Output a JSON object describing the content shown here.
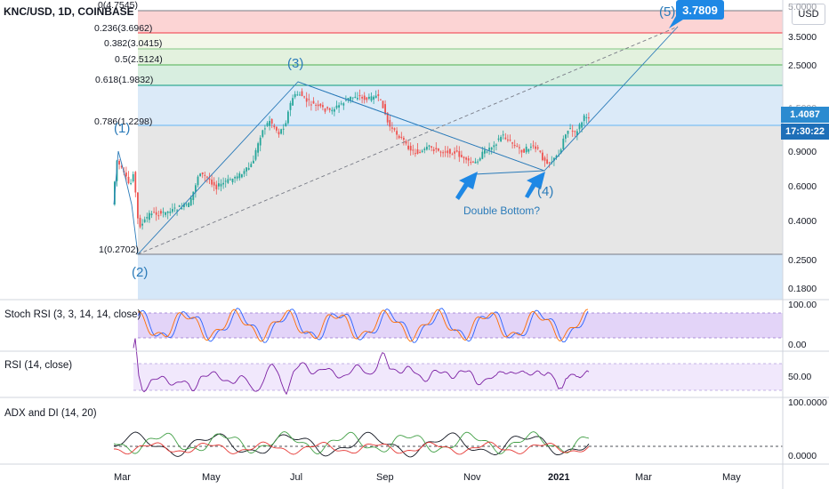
{
  "header": {
    "symbol_title": "KNC/USD, 1D, COINBASE",
    "currency_button": "USD"
  },
  "price_axis": {
    "ticks": [
      "5.0000",
      "3.5000",
      "2.5000",
      "1.5000",
      "0.9000",
      "0.6000",
      "0.4000",
      "0.2500",
      "0.1800"
    ],
    "last_price": "1.4087",
    "countdown": "17:30:22"
  },
  "fib_levels": [
    {
      "label": "0(4.7545)",
      "color": "#787b86"
    },
    {
      "label": "0.236(3.6962)",
      "color": "#f23645"
    },
    {
      "label": "0.382(3.0415)",
      "color": "#81c784"
    },
    {
      "label": "0.5(2.5124)",
      "color": "#4caf50"
    },
    {
      "label": "0.618(1.9832)",
      "color": "#089981"
    },
    {
      "label": "0.786(1.2298)",
      "color": "#64b5f6"
    },
    {
      "label": "1(0.2702)",
      "color": "#787b86"
    }
  ],
  "wave_labels": [
    "(1)",
    "(2)",
    "(3)",
    "(4)",
    "(5)"
  ],
  "annotations": {
    "double_bottom": "Double Bottom?",
    "target_value": "3.7809"
  },
  "indicators": {
    "stoch_rsi": {
      "label": "Stoch RSI (3, 3, 14, 14, close)",
      "ticks": [
        "100.00",
        "0.00"
      ]
    },
    "rsi": {
      "label": "RSI (14, close)",
      "ticks": [
        "50.00"
      ]
    },
    "adx": {
      "label": "ADX and DI (14, 20)",
      "ticks": [
        "100.0000",
        "0.0000"
      ]
    }
  },
  "time_axis": {
    "labels": [
      "Mar",
      "May",
      "Jul",
      "Sep",
      "Nov",
      "2021",
      "Mar",
      "May"
    ]
  },
  "colors": {
    "up_candle": "#26a69a",
    "down_candle": "#ef5350",
    "drawing_blue": "#2b7bb9",
    "stoch_bg": "#d9c6f5",
    "rsi_line": "#7b1fa2"
  }
}
